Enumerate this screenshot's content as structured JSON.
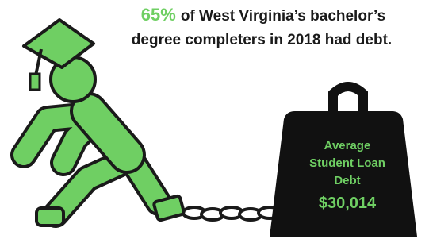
{
  "headline": {
    "highlight": "65%",
    "line1": "of West Virginia’s bachelor’s",
    "line2": "degree completers in 2018 had debt."
  },
  "weight": {
    "label_lines": [
      "Average",
      "Student Loan",
      "Debt"
    ],
    "amount": "$30,014"
  }
}
